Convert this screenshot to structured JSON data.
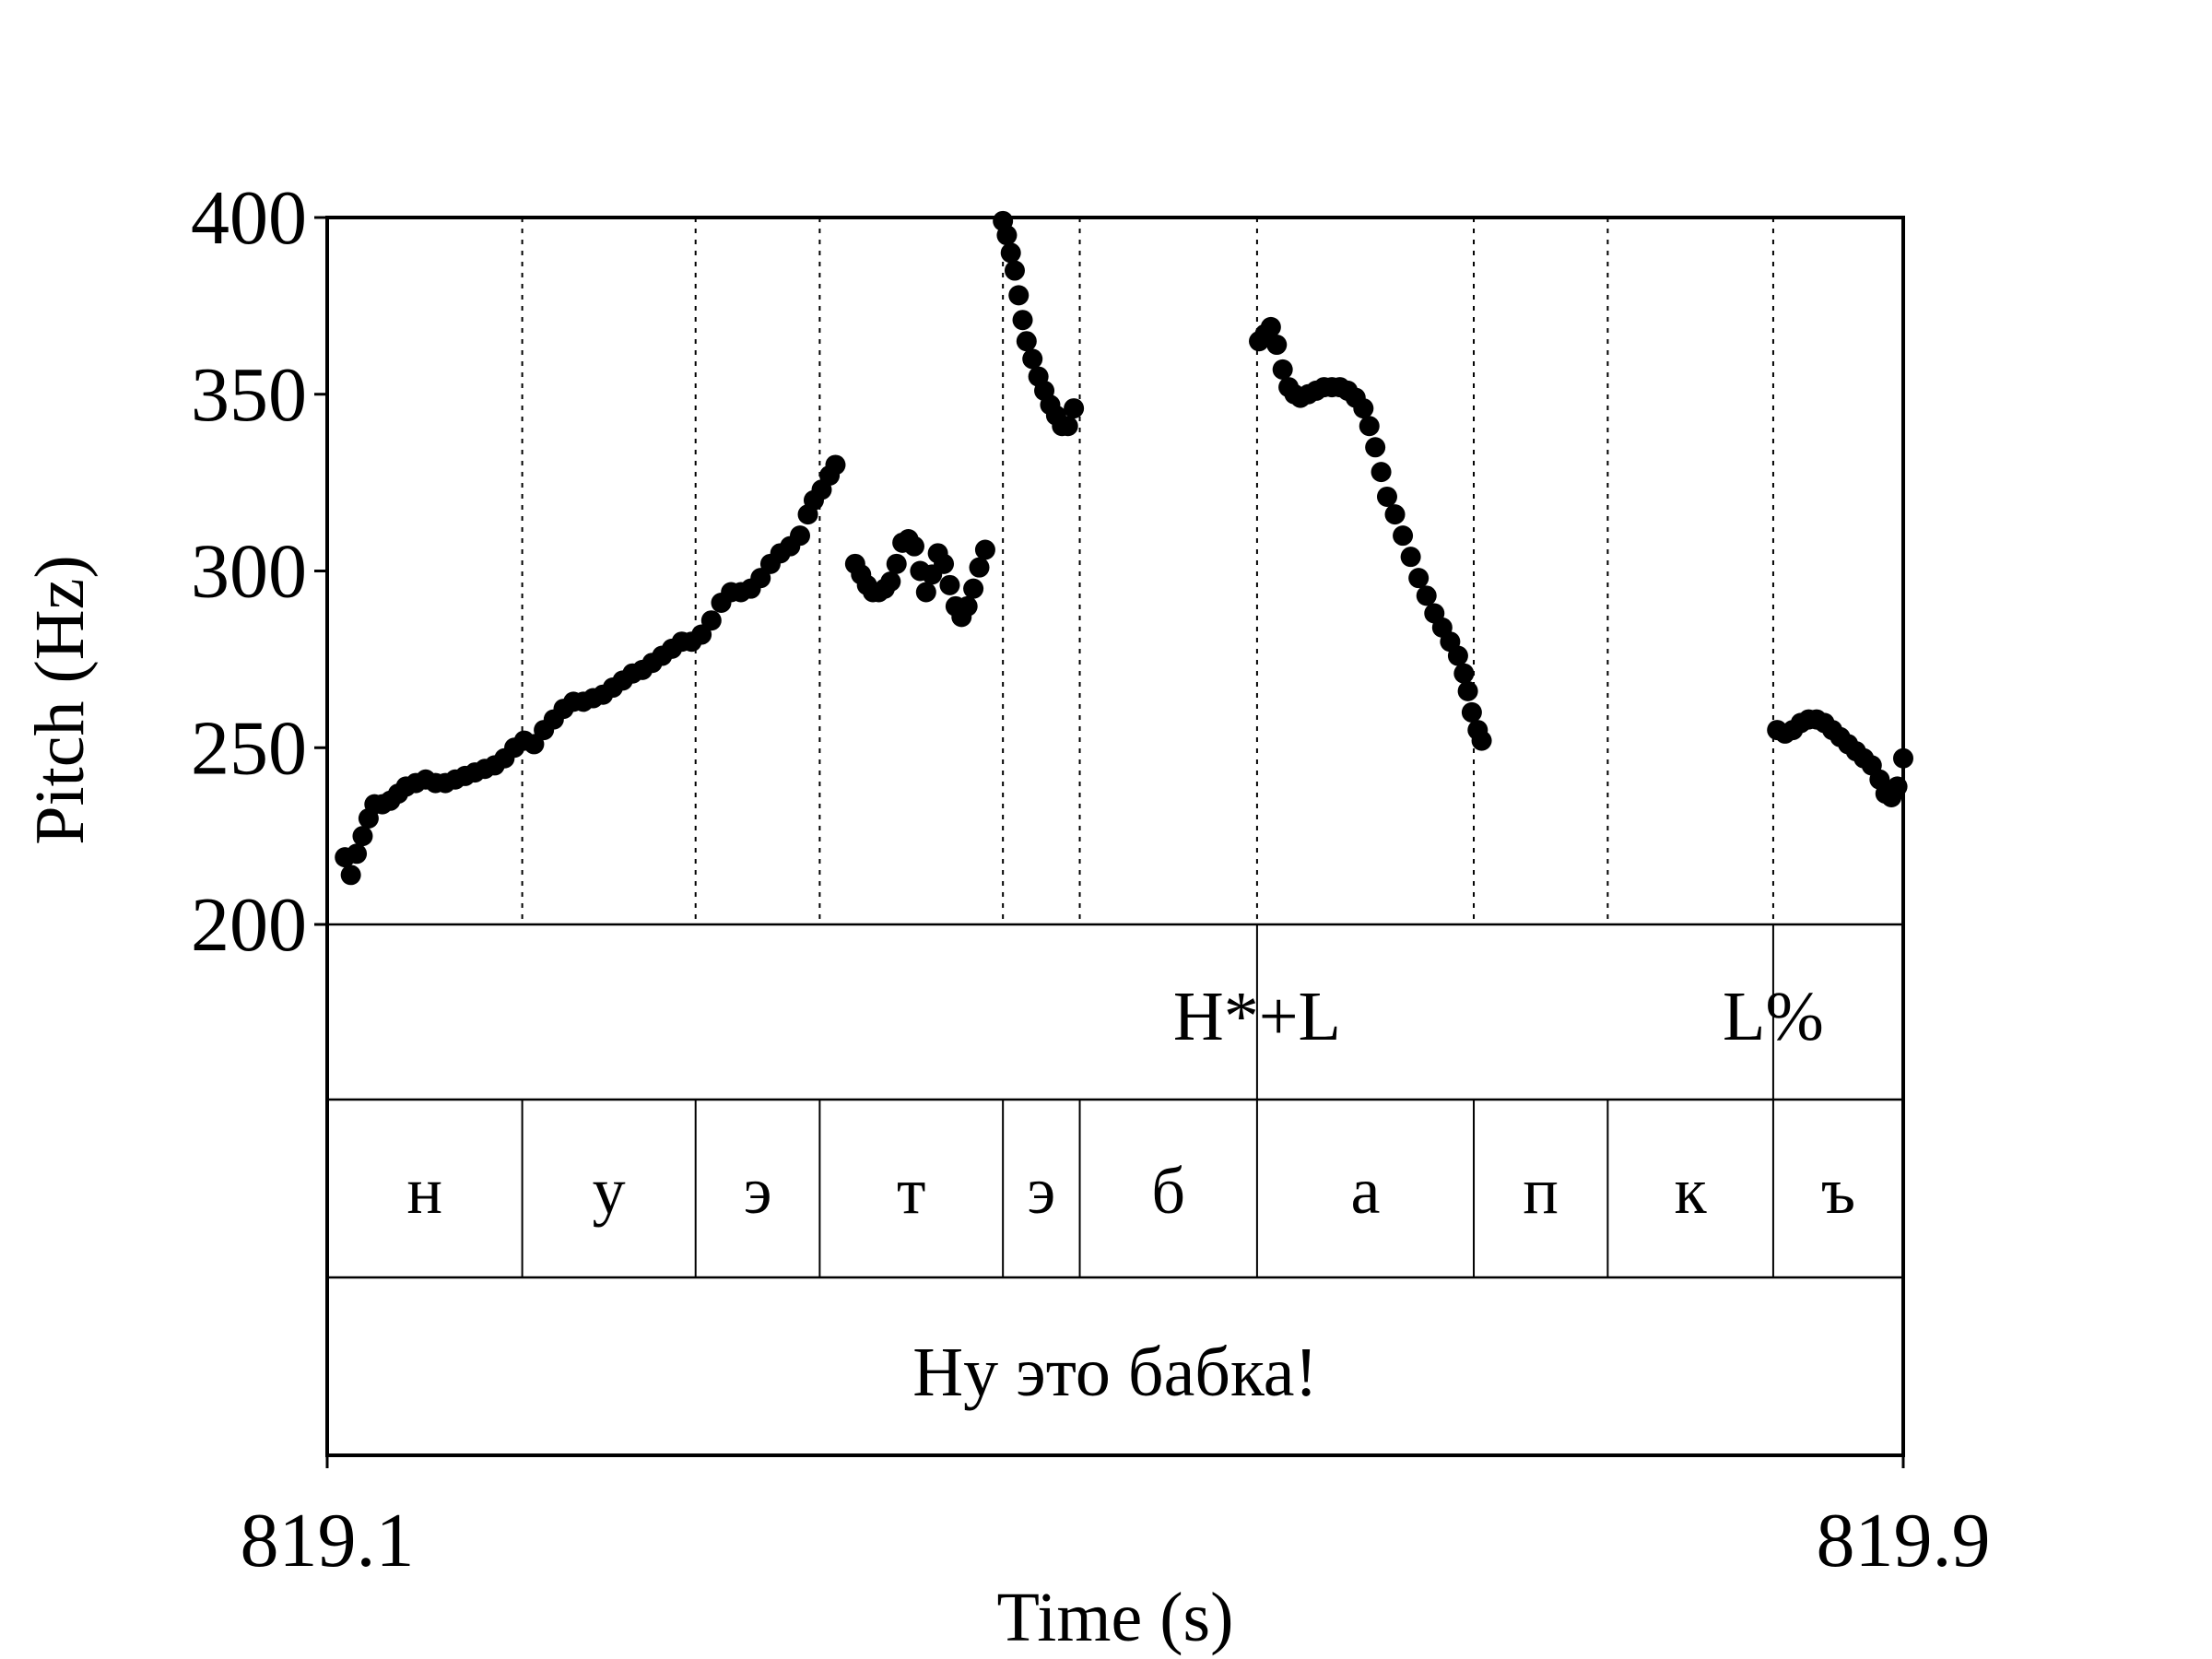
{
  "chart_data": {
    "type": "scatter",
    "title": "",
    "xlabel": "Time (s)",
    "ylabel": "Pitch (Hz)",
    "xlim": [
      819.1,
      819.9
    ],
    "ylim": [
      200,
      400
    ],
    "yticks": [
      "200",
      "250",
      "300",
      "350",
      "400"
    ],
    "xtick_start": "819.1",
    "xtick_end": "819.9",
    "boundaries": [
      819.199,
      819.287,
      819.35,
      819.443,
      819.482,
      819.572,
      819.682,
      819.75,
      819.834
    ],
    "tone_tier": {
      "boundaries": [
        819.572,
        819.834
      ],
      "labels": [
        {
          "text": "H*+L",
          "x": 819.572
        },
        {
          "text": "L%",
          "x": 819.834
        }
      ]
    },
    "phone_tier": [
      {
        "label": "н",
        "start": 819.1,
        "end": 819.199
      },
      {
        "label": "у",
        "start": 819.199,
        "end": 819.287
      },
      {
        "label": "э",
        "start": 819.287,
        "end": 819.35
      },
      {
        "label": "т",
        "start": 819.35,
        "end": 819.443
      },
      {
        "label": "э",
        "start": 819.443,
        "end": 819.482
      },
      {
        "label": "б",
        "start": 819.482,
        "end": 819.572
      },
      {
        "label": "а",
        "start": 819.572,
        "end": 819.682
      },
      {
        "label": "п",
        "start": 819.682,
        "end": 819.75
      },
      {
        "label": "к",
        "start": 819.75,
        "end": 819.834
      },
      {
        "label": "ъ",
        "start": 819.834,
        "end": 819.9
      }
    ],
    "sentence": "Ну это бабка!",
    "series": [
      {
        "points": [
          [
            819.109,
            219
          ],
          [
            819.112,
            214
          ],
          [
            819.115,
            220
          ],
          [
            819.118,
            225
          ],
          [
            819.121,
            230
          ],
          [
            819.124,
            234
          ],
          [
            819.128,
            234
          ],
          [
            819.132,
            235
          ],
          [
            819.136,
            237
          ],
          [
            819.14,
            239
          ],
          [
            819.145,
            240
          ],
          [
            819.15,
            241
          ],
          [
            819.155,
            240
          ],
          [
            819.16,
            240
          ],
          [
            819.165,
            241
          ],
          [
            819.17,
            242
          ],
          [
            819.175,
            243
          ],
          [
            819.18,
            244
          ],
          [
            819.185,
            245
          ],
          [
            819.19,
            247
          ],
          [
            819.195,
            250
          ],
          [
            819.2,
            252
          ],
          [
            819.205,
            251
          ],
          [
            819.21,
            255
          ],
          [
            819.215,
            258
          ],
          [
            819.22,
            261
          ],
          [
            819.225,
            263
          ],
          [
            819.23,
            263
          ],
          [
            819.235,
            264
          ],
          [
            819.24,
            265
          ],
          [
            819.245,
            267
          ],
          [
            819.25,
            269
          ],
          [
            819.255,
            271
          ],
          [
            819.26,
            272
          ],
          [
            819.265,
            274
          ],
          [
            819.27,
            276
          ],
          [
            819.275,
            278
          ],
          [
            819.28,
            280
          ],
          [
            819.285,
            280
          ],
          [
            819.29,
            282
          ],
          [
            819.295,
            286
          ],
          [
            819.3,
            291
          ],
          [
            819.305,
            294
          ],
          [
            819.31,
            294
          ],
          [
            819.315,
            295
          ],
          [
            819.32,
            298
          ],
          [
            819.325,
            302
          ],
          [
            819.33,
            305
          ],
          [
            819.335,
            307
          ],
          [
            819.34,
            310
          ],
          [
            819.344,
            316
          ],
          [
            819.347,
            320
          ],
          [
            819.351,
            323
          ],
          [
            819.355,
            327
          ],
          [
            819.358,
            330
          ]
        ]
      },
      {
        "points": [
          [
            819.368,
            302
          ],
          [
            819.371,
            299
          ],
          [
            819.374,
            296
          ],
          [
            819.377,
            294
          ],
          [
            819.38,
            294
          ],
          [
            819.383,
            295
          ],
          [
            819.386,
            297
          ],
          [
            819.389,
            302
          ],
          [
            819.392,
            308
          ],
          [
            819.395,
            309
          ],
          [
            819.398,
            307
          ],
          [
            819.401,
            300
          ],
          [
            819.404,
            294
          ],
          [
            819.407,
            299
          ],
          [
            819.41,
            305
          ],
          [
            819.413,
            302
          ],
          [
            819.416,
            296
          ],
          [
            819.419,
            290
          ],
          [
            819.422,
            287
          ],
          [
            819.425,
            290
          ],
          [
            819.428,
            295
          ],
          [
            819.431,
            301
          ],
          [
            819.434,
            306
          ]
        ]
      },
      {
        "points": [
          [
            819.443,
            399
          ],
          [
            819.445,
            395
          ],
          [
            819.447,
            390
          ],
          [
            819.449,
            385
          ],
          [
            819.451,
            378
          ],
          [
            819.453,
            371
          ],
          [
            819.455,
            365
          ],
          [
            819.458,
            360
          ],
          [
            819.461,
            355
          ],
          [
            819.464,
            351
          ],
          [
            819.467,
            347
          ],
          [
            819.47,
            344
          ],
          [
            819.473,
            341
          ],
          [
            819.476,
            341
          ],
          [
            819.479,
            346
          ]
        ]
      },
      {
        "points": [
          [
            819.573,
            365
          ],
          [
            819.576,
            367
          ],
          [
            819.579,
            369
          ],
          [
            819.582,
            364
          ],
          [
            819.585,
            357
          ],
          [
            819.588,
            352
          ],
          [
            819.591,
            350
          ],
          [
            819.594,
            349
          ],
          [
            819.598,
            350
          ],
          [
            819.602,
            351
          ],
          [
            819.606,
            352
          ],
          [
            819.61,
            352
          ],
          [
            819.614,
            352
          ],
          [
            819.618,
            351
          ],
          [
            819.622,
            349
          ],
          [
            819.626,
            346
          ],
          [
            819.629,
            341
          ],
          [
            819.632,
            335
          ],
          [
            819.635,
            328
          ],
          [
            819.638,
            321
          ],
          [
            819.642,
            316
          ],
          [
            819.646,
            310
          ],
          [
            819.65,
            304
          ],
          [
            819.654,
            298
          ],
          [
            819.658,
            293
          ],
          [
            819.662,
            288
          ],
          [
            819.666,
            284
          ],
          [
            819.67,
            280
          ],
          [
            819.674,
            276
          ],
          [
            819.677,
            271
          ],
          [
            819.679,
            266
          ],
          [
            819.681,
            260
          ],
          [
            819.684,
            255
          ],
          [
            819.686,
            252
          ]
        ]
      },
      {
        "points": [
          [
            819.836,
            255
          ],
          [
            819.84,
            254
          ],
          [
            819.844,
            255
          ],
          [
            819.848,
            257
          ],
          [
            819.852,
            258
          ],
          [
            819.856,
            258
          ],
          [
            819.86,
            257
          ],
          [
            819.864,
            255
          ],
          [
            819.868,
            253
          ],
          [
            819.872,
            251
          ],
          [
            819.876,
            249
          ],
          [
            819.88,
            247
          ],
          [
            819.884,
            245
          ],
          [
            819.888,
            241
          ],
          [
            819.891,
            237
          ],
          [
            819.894,
            236
          ],
          [
            819.897,
            239
          ],
          [
            819.9,
            247
          ]
        ]
      }
    ]
  }
}
